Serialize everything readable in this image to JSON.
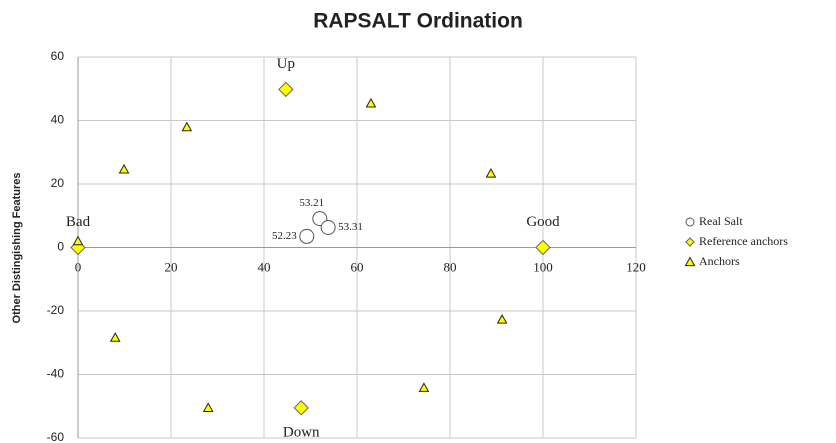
{
  "chart_data": {
    "type": "scatter",
    "title": "RAPSALT Ordination",
    "ylabel": "Other Distingishing Features",
    "xlim": [
      0,
      120
    ],
    "ylim": [
      -60,
      60
    ],
    "xticks": [
      0,
      20,
      40,
      60,
      80,
      100,
      120
    ],
    "yticks": [
      -60,
      -40,
      -20,
      0,
      20,
      40,
      60
    ],
    "grid": true,
    "legend": "right",
    "series": [
      {
        "name": "Real Salt",
        "marker": "circle",
        "color": "#ffffff",
        "x": [
          52,
          53.8,
          49.2
        ],
        "values": [
          9.1,
          6.3,
          3.5
        ],
        "labels": [
          "53.21",
          "53.31",
          "52.23"
        ],
        "label_positions": [
          "above",
          "right",
          "left"
        ]
      },
      {
        "name": "Reference anchors",
        "marker": "diamond",
        "color": "#ffff00",
        "x": [
          0,
          100,
          44.7,
          48
        ],
        "values": [
          0,
          0,
          49.8,
          -50.5
        ]
      },
      {
        "name": "Anchors",
        "marker": "triangle",
        "color": "#ffff00",
        "x": [
          0,
          9.9,
          23.4,
          63,
          88.8,
          91.2,
          74.4,
          28,
          8
        ],
        "values": [
          2,
          24.6,
          37.9,
          45.4,
          23.3,
          -22.7,
          -44.2,
          -50.5,
          -28.4
        ]
      }
    ],
    "annotations": [
      {
        "text": "Bad",
        "x": 0,
        "y": 0,
        "position": "above"
      },
      {
        "text": "Good",
        "x": 100,
        "y": 0,
        "position": "above"
      },
      {
        "text": "Up",
        "x": 44.7,
        "y": 49.8,
        "position": "above"
      },
      {
        "text": "Down",
        "x": 48,
        "y": -50.5,
        "position": "below"
      }
    ]
  }
}
